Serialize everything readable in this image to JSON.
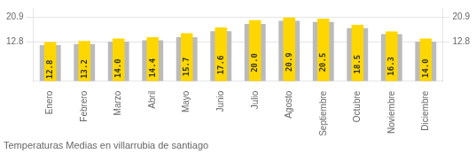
{
  "chart_data": {
    "type": "bar",
    "title": "Temperaturas Medias en villarrubia de santiago",
    "categories": [
      "Enero",
      "Febrero",
      "Marzo",
      "Abril",
      "Mayo",
      "Junio",
      "Julio",
      "Agosto",
      "Septiembre",
      "Octubre",
      "Noviembre",
      "Diciembre"
    ],
    "series": [
      {
        "color": "#BBBBBB",
        "values": [
          11.8,
          12.2,
          13.0,
          13.4,
          14.4,
          16.4,
          18.8,
          19.8,
          19.4,
          17.4,
          15.4,
          13.0
        ]
      },
      {
        "color": "#FFD700",
        "values": [
          12.8,
          13.2,
          14.0,
          14.4,
          15.7,
          17.6,
          20.0,
          20.9,
          20.5,
          18.5,
          16.3,
          14.0
        ],
        "value_labels": [
          "12.8",
          "13.2",
          "14.0",
          "14.4",
          "15.7",
          "17.6",
          "20.0",
          "20.9",
          "20.5",
          "18.5",
          "16.3",
          "14.0"
        ],
        "data_labels": true
      }
    ],
    "ylim": [
      0,
      24.0
    ],
    "yticks": [
      12.8,
      20.9
    ],
    "y2lim": [
      0,
      24.0
    ],
    "y2ticks": [
      12.8,
      20.9
    ],
    "grid": true
  }
}
